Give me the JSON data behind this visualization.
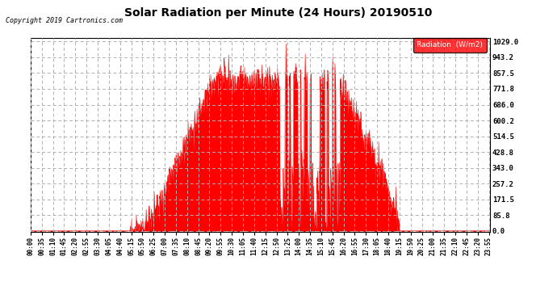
{
  "title": "Solar Radiation per Minute (24 Hours) 20190510",
  "copyright_text": "Copyright 2019 Cartronics.com",
  "legend_label": "Radiation  (W/m2)",
  "bg_color": "#ffffff",
  "plot_bg_color": "#ffffff",
  "fill_color": "#ff0000",
  "line_color": "#ff0000",
  "zero_line_color": "#ff0000",
  "grid_color": "#b0b0b0",
  "yticks": [
    0.0,
    85.8,
    171.5,
    257.2,
    343.0,
    428.8,
    514.5,
    600.2,
    686.0,
    771.8,
    857.5,
    943.2,
    1029.0
  ],
  "ymin": 0.0,
  "ymax": 1029.0,
  "total_minutes": 1440,
  "figwidth": 6.9,
  "figheight": 3.75,
  "dpi": 100
}
